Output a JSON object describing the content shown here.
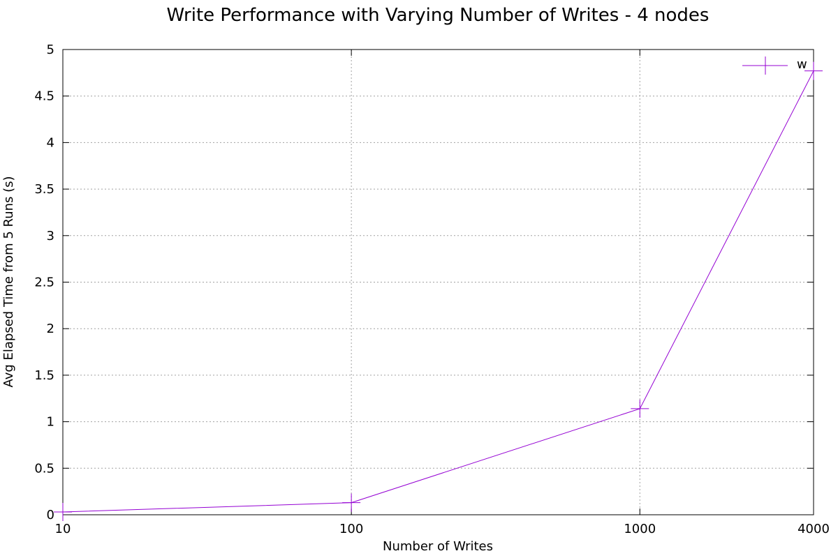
{
  "chart_data": {
    "type": "line",
    "title": "Write Performance with Varying Number of Writes - 4 nodes",
    "xlabel": "Number of Writes",
    "ylabel": "Avg Elapsed Time from 5 Runs (s)",
    "x_scale": "log",
    "xlim": [
      10,
      4000
    ],
    "ylim": [
      0,
      5
    ],
    "x_ticks": [
      "10",
      "100",
      "1000",
      "4000"
    ],
    "x_tick_values": [
      10,
      100,
      1000,
      4000
    ],
    "y_ticks": [
      "0",
      "0.5",
      "1",
      "1.5",
      "2",
      "2.5",
      "3",
      "3.5",
      "4",
      "4.5",
      "5"
    ],
    "y_tick_values": [
      0,
      0.5,
      1,
      1.5,
      2,
      2.5,
      3,
      3.5,
      4,
      4.5,
      5
    ],
    "grid": true,
    "legend_position": "top-right",
    "series": [
      {
        "name": "w",
        "color": "#9400d3",
        "marker": "plus",
        "x": [
          10,
          100,
          1000,
          4000
        ],
        "y": [
          0.03,
          0.13,
          1.14,
          4.77
        ]
      }
    ]
  }
}
